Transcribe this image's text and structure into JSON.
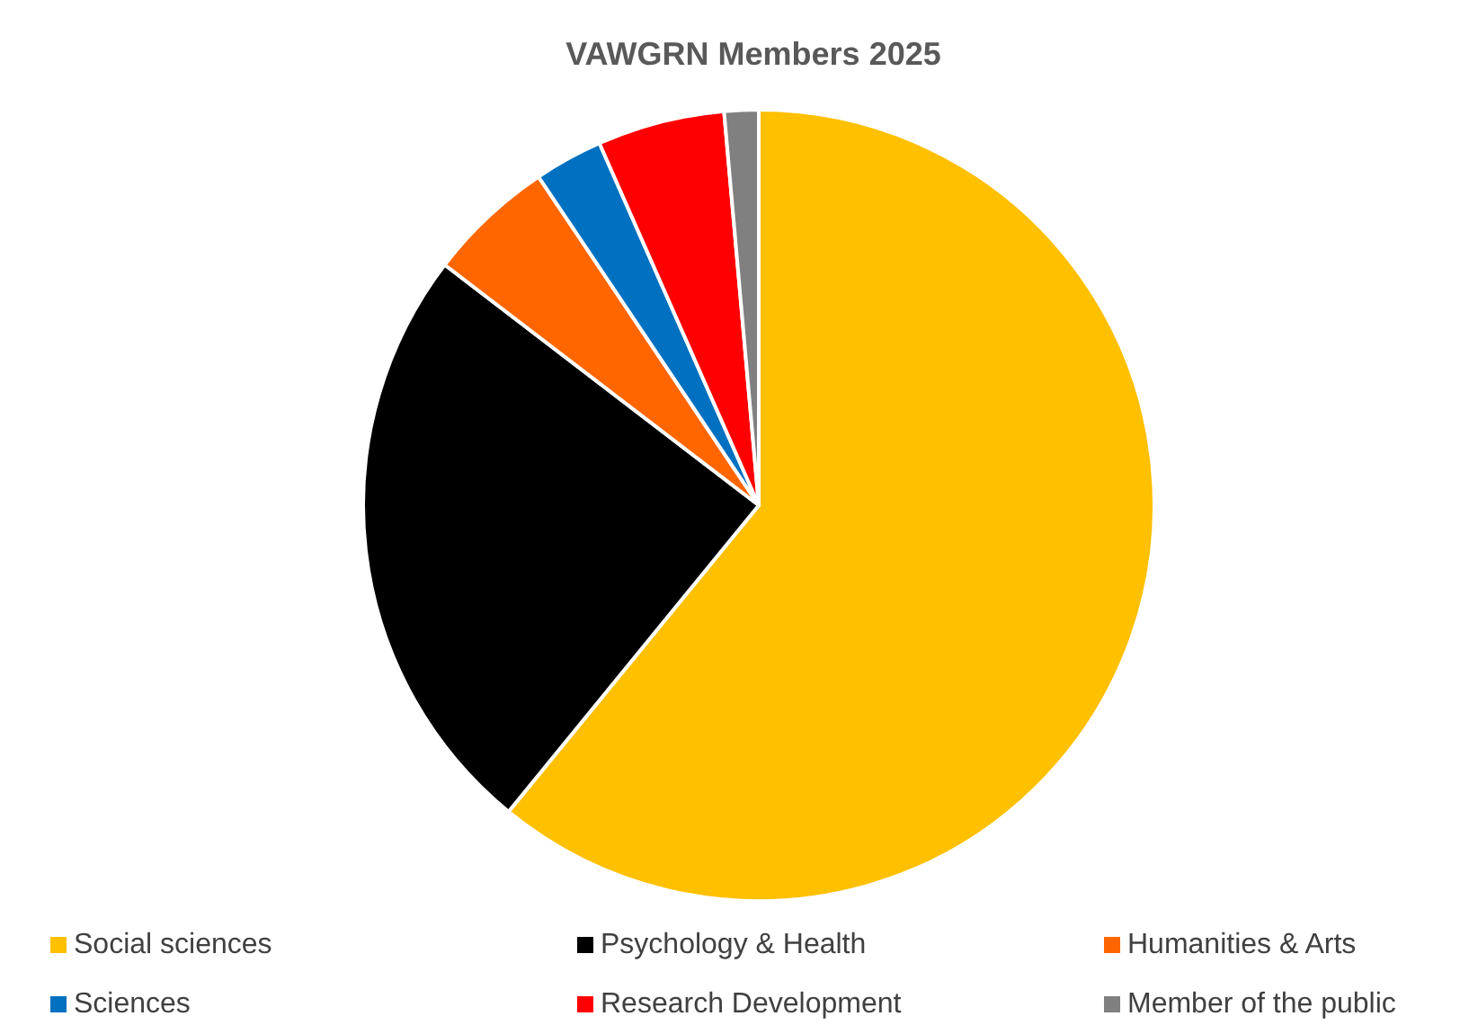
{
  "chart_data": {
    "type": "pie",
    "title": "VAWGRN Members 2025",
    "categories": [
      "Social sciences",
      "Psychology & Health",
      "Humanities & Arts",
      "Sciences",
      "Research Development",
      "Member of the public"
    ],
    "values": [
      60.9,
      24.5,
      5.2,
      2.8,
      5.2,
      1.4
    ],
    "colors": [
      "#ffc000",
      "#000000",
      "#ff6600",
      "#0070c0",
      "#ff0000",
      "#808080"
    ],
    "legend": "bottom"
  }
}
